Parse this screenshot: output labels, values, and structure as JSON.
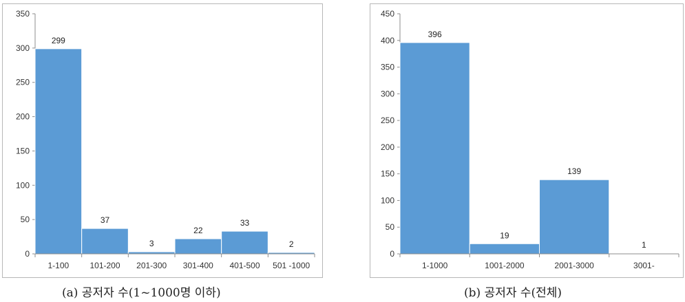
{
  "chart_data": [
    {
      "type": "bar",
      "categories": [
        "1-100",
        "101-200",
        "201-300",
        "301-400",
        "401-500",
        "501 -1000"
      ],
      "values": [
        299,
        37,
        3,
        22,
        33,
        2
      ],
      "ylim": [
        0,
        350
      ],
      "yticks": [
        0,
        50,
        100,
        150,
        200,
        250,
        300,
        350
      ],
      "grid": false,
      "bar_color": "#5b9bd5",
      "caption": "(a) 공저자 수(1~1000명 이하)"
    },
    {
      "type": "bar",
      "categories": [
        "1-1000",
        "1001-2000",
        "2001-3000",
        "3001-"
      ],
      "values": [
        396,
        19,
        139,
        1
      ],
      "ylim": [
        0,
        450
      ],
      "yticks": [
        0,
        50,
        100,
        150,
        200,
        250,
        300,
        350,
        400,
        450
      ],
      "grid": false,
      "bar_color": "#5b9bd5",
      "caption": "(b) 공저자 수(전체)"
    }
  ]
}
